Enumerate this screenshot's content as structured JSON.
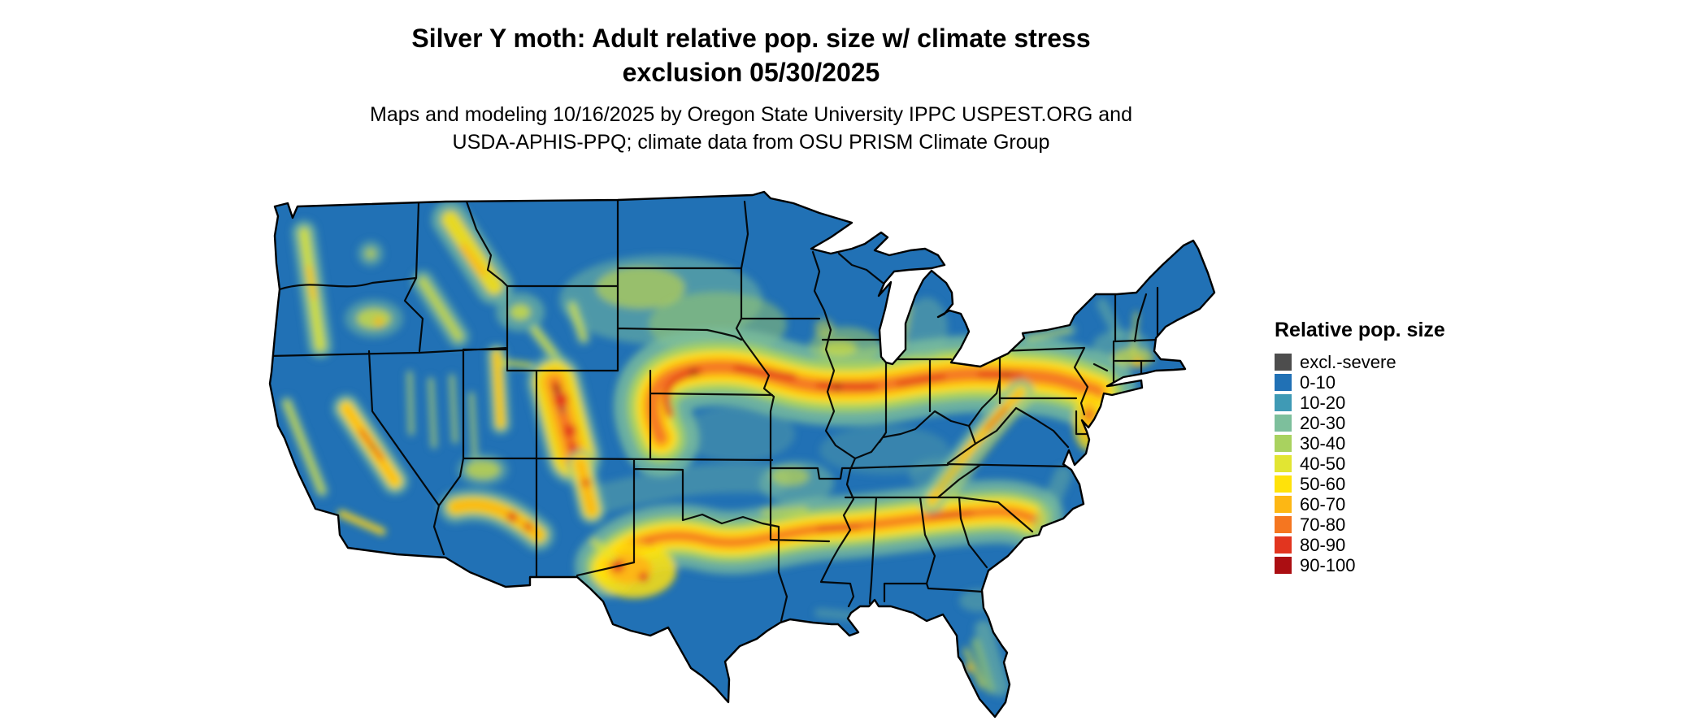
{
  "header": {
    "title_line1": "Silver Y moth: Adult relative pop. size w/ climate stress",
    "title_line2": "exclusion 05/30/2025",
    "subtitle_line1": "Maps and modeling 10/16/2025 by Oregon State University IPPC USPEST.ORG and",
    "subtitle_line2": "USDA-APHIS-PPQ; climate data from OSU PRISM Climate Group"
  },
  "legend": {
    "title": "Relative pop. size",
    "items": [
      {
        "label": "excl.-severe",
        "color": "#4d4d4d"
      },
      {
        "label": "0-10",
        "color": "#2171b5"
      },
      {
        "label": "10-20",
        "color": "#3f9ab5"
      },
      {
        "label": "20-30",
        "color": "#7dbf9c"
      },
      {
        "label": "30-40",
        "color": "#a9d25f"
      },
      {
        "label": "40-50",
        "color": "#e2e532"
      },
      {
        "label": "50-60",
        "color": "#ffe20a"
      },
      {
        "label": "60-70",
        "color": "#fdb714"
      },
      {
        "label": "70-80",
        "color": "#f57620"
      },
      {
        "label": "80-90",
        "color": "#e2351f"
      },
      {
        "label": "90-100",
        "color": "#ab0e12"
      }
    ]
  },
  "map": {
    "description": "Contiguous United States raster map of modeled adult relative population size with black state boundaries",
    "base_color": "#2171b5",
    "boundary_color": "#000000"
  }
}
